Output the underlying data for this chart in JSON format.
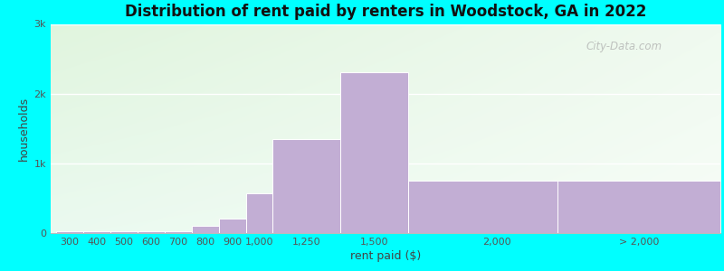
{
  "title": "Distribution of rent paid by renters in Woodstock, GA in 2022",
  "xlabel": "rent paid ($)",
  "ylabel": "households",
  "bar_left_edges": [
    250,
    350,
    450,
    550,
    650,
    750,
    850,
    950,
    1050,
    1300,
    1550,
    2100
  ],
  "bar_widths": [
    100,
    100,
    100,
    100,
    100,
    100,
    100,
    100,
    250,
    250,
    550,
    600
  ],
  "bar_heights": [
    20,
    25,
    25,
    20,
    20,
    100,
    200,
    570,
    1350,
    2310,
    750,
    750
  ],
  "bar_color": "#c2aed4",
  "ylim": [
    0,
    3000
  ],
  "yticks": [
    0,
    1000,
    2000,
    3000
  ],
  "ytick_labels": [
    "0",
    "1k",
    "2k",
    "3k"
  ],
  "xtick_labels": [
    "300",
    "400",
    "500",
    "600",
    "700",
    "800",
    "900",
    "1,000",
    "1,250",
    "1,500",
    "2,000",
    "> 2,000"
  ],
  "xtick_positions": [
    300,
    400,
    500,
    600,
    700,
    800,
    900,
    1000,
    1175,
    1425,
    1875,
    2400
  ],
  "xlim_left": 230,
  "xlim_right": 2700,
  "title_fontsize": 12,
  "axis_label_fontsize": 9,
  "tick_fontsize": 8,
  "watermark_text": "City-Data.com",
  "background_color": "#00ffff",
  "grad_topleft": "#e0f0e0",
  "grad_topright": "#f0f8f0",
  "grad_bottomleft": "#e8f8f0",
  "grad_bottomright": "#f8fcf8"
}
